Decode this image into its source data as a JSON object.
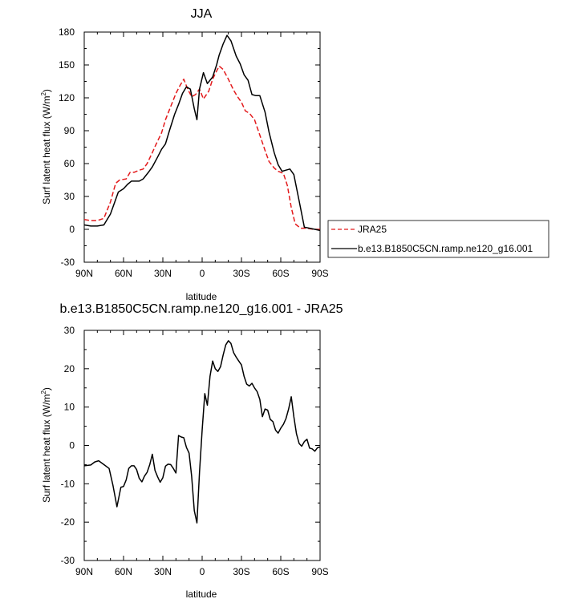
{
  "colors": {
    "model": "#000000",
    "obs": "#e31a1c",
    "frame": "#000000"
  },
  "chart_data": [
    {
      "type": "line",
      "title": "JJA",
      "xlabel": "latitude",
      "ylabel": "Surf latent heat flux (W/m",
      "ylabel_sup": "2",
      "ylabel_close": ")",
      "xlim": [
        -90,
        90
      ],
      "ylim": [
        -30,
        180
      ],
      "yticks": [
        -30,
        0,
        30,
        60,
        90,
        120,
        150,
        180
      ],
      "ytick_labels": [
        "-30",
        "0",
        "30",
        "60",
        "90",
        "120",
        "150",
        "180"
      ],
      "xticks": [
        -90,
        -60,
        -30,
        0,
        30,
        60,
        90
      ],
      "xtick_labels": [
        "90N",
        "60N",
        "30N",
        "0",
        "30S",
        "60S",
        "90S"
      ],
      "legend": {
        "position": "right",
        "entries": [
          {
            "label": "JRA25",
            "style": "dashed",
            "color": "#e31a1c"
          },
          {
            "label": "b.e13.B1850C5CN.ramp.ne120_g16.001",
            "style": "solid",
            "color": "#000000"
          }
        ]
      },
      "series": [
        {
          "name": "JRA25",
          "style": "dashed",
          "color": "#e31a1c",
          "x": [
            -90,
            -85,
            -80,
            -75,
            -70,
            -66,
            -63,
            -58,
            -55,
            -52,
            -48,
            -45,
            -42,
            -38,
            -35,
            -31,
            -28,
            -24,
            -20,
            -17,
            -14,
            -11,
            -8,
            -5,
            -2,
            1,
            5,
            8,
            10,
            13,
            16,
            20,
            24,
            27,
            30,
            33,
            36,
            40,
            44,
            48,
            51,
            55,
            58,
            62,
            65,
            68,
            71,
            75,
            80,
            85,
            90
          ],
          "y": [
            9,
            8,
            8,
            10,
            25,
            42,
            45,
            46,
            52,
            52,
            54,
            55,
            60,
            70,
            78,
            88,
            100,
            112,
            124,
            131,
            137,
            128,
            121,
            123,
            128,
            119,
            126,
            137,
            142,
            149,
            146,
            137,
            127,
            121,
            116,
            108,
            106,
            100,
            86,
            72,
            62,
            56,
            53,
            51,
            40,
            20,
            5,
            1,
            1,
            0,
            0
          ]
        },
        {
          "name": "b.e13.B1850C5CN.ramp.ne120_g16.001",
          "style": "solid",
          "color": "#000000",
          "x": [
            -90,
            -85,
            -80,
            -75,
            -70,
            -67,
            -64,
            -60,
            -57,
            -54,
            -51,
            -48,
            -45,
            -41,
            -38,
            -34,
            -31,
            -28,
            -25,
            -21,
            -18,
            -15,
            -12,
            -9,
            -6,
            -4,
            -2,
            1,
            4,
            8,
            11,
            13,
            16,
            19,
            22,
            26,
            29,
            32,
            35,
            38,
            41,
            44,
            48,
            51,
            55,
            58,
            61,
            64,
            67,
            70,
            74,
            78,
            82,
            86,
            90
          ],
          "y": [
            4,
            3,
            3,
            4,
            14,
            24,
            34,
            37,
            41,
            44,
            44,
            44,
            46,
            52,
            57,
            66,
            73,
            78,
            90,
            105,
            114,
            124,
            130,
            128,
            110,
            100,
            128,
            143,
            133,
            139,
            150,
            159,
            169,
            177,
            172,
            158,
            151,
            141,
            136,
            123,
            122,
            122,
            107,
            89,
            70,
            59,
            53,
            54,
            55,
            50,
            26,
            2,
            1,
            0,
            -1
          ]
        }
      ]
    },
    {
      "type": "line",
      "title": "b.e13.B1850C5CN.ramp.ne120_g16.001 - JRA25",
      "xlabel": "latitude",
      "ylabel": "Surf latent heat flux (W/m",
      "ylabel_sup": "2",
      "ylabel_close": ")",
      "xlim": [
        -90,
        90
      ],
      "ylim": [
        -30,
        30
      ],
      "yticks": [
        -30,
        -20,
        -10,
        0,
        10,
        20,
        30
      ],
      "ytick_labels": [
        "-30",
        "-20",
        "-10",
        "0",
        "10",
        "20",
        "30"
      ],
      "xticks": [
        -90,
        -60,
        -30,
        0,
        30,
        60,
        90
      ],
      "xtick_labels": [
        "90N",
        "60N",
        "30N",
        "0",
        "30S",
        "60S",
        "90S"
      ],
      "series": [
        {
          "name": "b.e13.B1850C5CN.ramp.ne120_g16.001 - JRA25",
          "style": "solid",
          "color": "#000000",
          "x": [
            -90,
            -85,
            -82,
            -79,
            -75,
            -71,
            -68,
            -65,
            -62,
            -60,
            -58,
            -56,
            -54,
            -52,
            -50,
            -48,
            -46,
            -44,
            -42,
            -40,
            -38,
            -36,
            -34,
            -32,
            -30,
            -28,
            -26,
            -24,
            -22,
            -20,
            -18,
            -16,
            -14,
            -12,
            -10,
            -8,
            -6,
            -4,
            -2,
            0,
            2,
            4,
            6,
            8,
            10,
            12,
            14,
            16,
            18,
            20,
            22,
            24,
            26,
            28,
            30,
            32,
            34,
            36,
            38,
            40,
            42,
            44,
            46,
            48,
            50,
            52,
            54,
            56,
            58,
            60,
            62,
            64,
            66,
            68,
            70,
            72,
            74,
            76,
            78,
            80,
            82,
            84,
            86,
            88,
            90
          ],
          "y": [
            -5.3,
            -5.1,
            -4.3,
            -4,
            -5,
            -6,
            -10.5,
            -16,
            -10.9,
            -10.7,
            -9,
            -6,
            -5.3,
            -5.3,
            -6.3,
            -8.6,
            -9.5,
            -8,
            -7,
            -5,
            -2.3,
            -6.5,
            -8.2,
            -9.6,
            -8.4,
            -5.4,
            -4.9,
            -5,
            -6,
            -7.2,
            2.6,
            2.2,
            2,
            -0.5,
            -2,
            -8,
            -17,
            -20.2,
            -7,
            4,
            13.5,
            10.5,
            18,
            22,
            20,
            19.3,
            20.5,
            23.5,
            26.2,
            27.3,
            26.6,
            24.2,
            23,
            22,
            21,
            18,
            16,
            15.5,
            16.2,
            15,
            14,
            12,
            7.5,
            9.5,
            9.2,
            6.8,
            6.2,
            4,
            3.2,
            4.5,
            5.5,
            7,
            9.5,
            12.7,
            7.5,
            3,
            0.5,
            -0.2,
            1,
            1.6,
            -0.7,
            -0.9,
            -1.5,
            -0.6,
            -0.4
          ]
        }
      ]
    }
  ]
}
